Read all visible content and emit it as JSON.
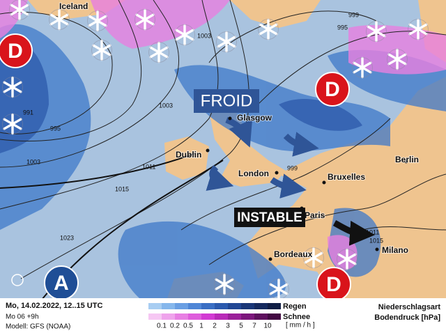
{
  "map": {
    "cities": [
      {
        "label": "Iceland"
      },
      {
        "label": "Glasgow"
      },
      {
        "label": "Dublin"
      },
      {
        "label": "London"
      },
      {
        "label": "Bruxelles"
      },
      {
        "label": "Berlin"
      },
      {
        "label": "Paris"
      },
      {
        "label": "Bordeaux"
      },
      {
        "label": "Milano"
      }
    ],
    "pressure_centers": [
      {
        "label": "D"
      },
      {
        "label": "D"
      },
      {
        "label": "D"
      },
      {
        "label": "A"
      }
    ],
    "isobars": [
      {
        "label": "999"
      },
      {
        "label": "995"
      },
      {
        "label": "1003"
      },
      {
        "label": "991"
      },
      {
        "label": "995"
      },
      {
        "label": "1003"
      },
      {
        "label": "1003"
      },
      {
        "label": "1011"
      },
      {
        "label": "1015"
      },
      {
        "label": "1023"
      },
      {
        "label": "999"
      },
      {
        "label": "1011"
      },
      {
        "label": "1015"
      }
    ],
    "annotations": [
      "FROID",
      "INSTABLE"
    ]
  },
  "footer": {
    "date": "Mo, 14.02.2022, 12..15 UTC",
    "run": "Mo 06 +9h",
    "model": "Modell: GFS (NOAA)",
    "legend": {
      "rain": "Regen",
      "snow": "Schnee",
      "unit": "[ mm / h ]",
      "scale": [
        "0.1",
        "0.2",
        "0.5",
        "1",
        "2",
        "3",
        "5",
        "7",
        "10"
      ]
    },
    "title": "Niederschlagsart",
    "subtitle": "Bodendruck [hPa]"
  }
}
